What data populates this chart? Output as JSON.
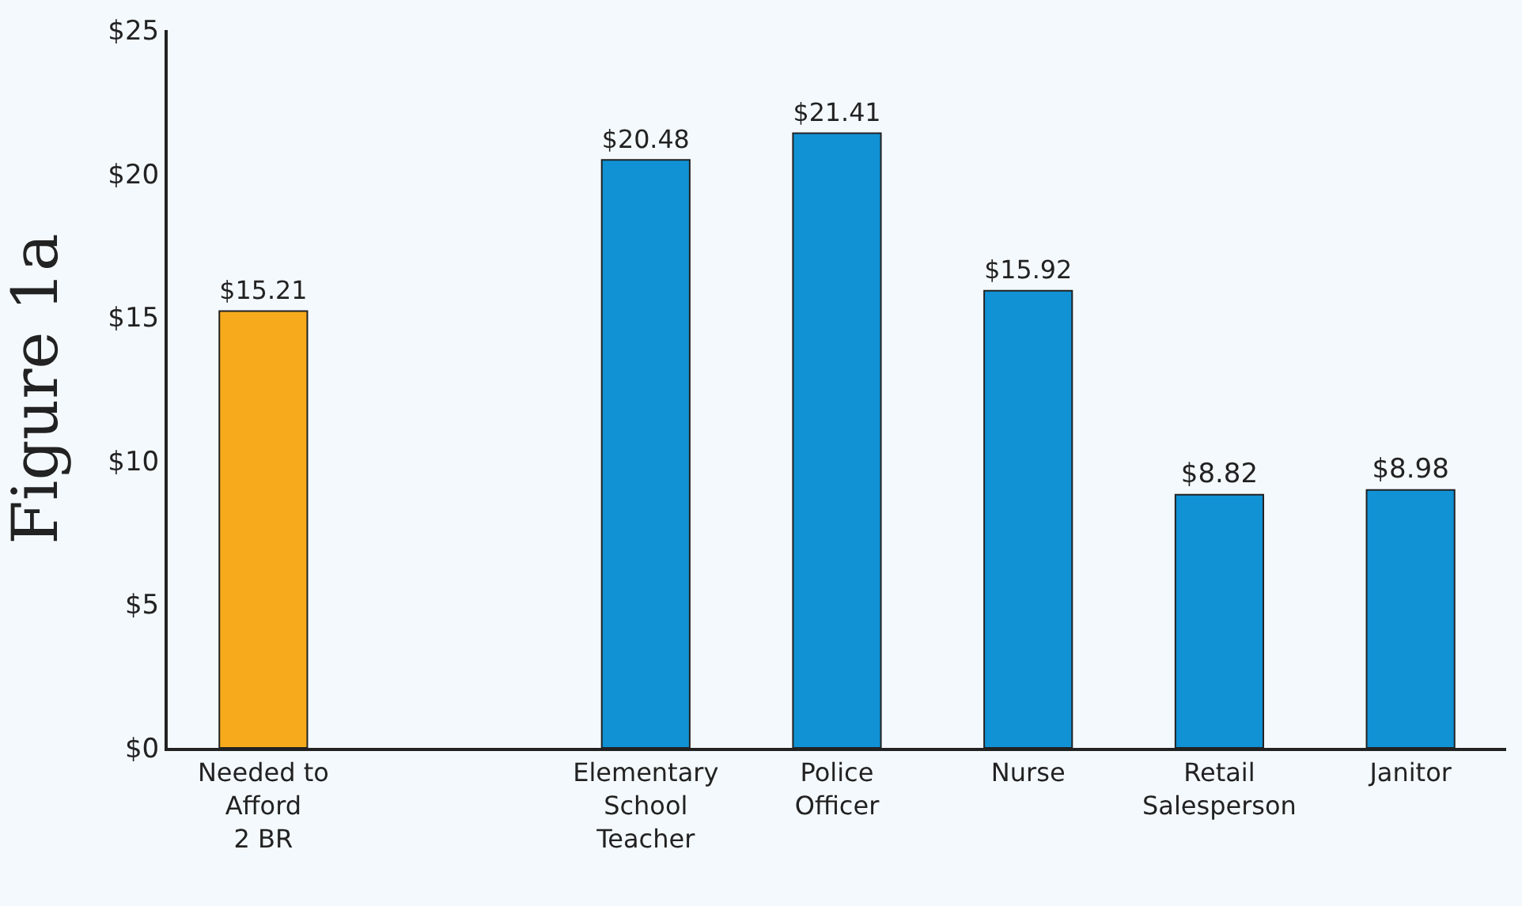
{
  "chart_data": {
    "type": "bar",
    "ylabel": "Figure 1a",
    "categories": [
      "Needed to\nAfford\n2 BR",
      null,
      "Elementary\nSchool\nTeacher",
      "Police\nOfficer",
      "Nurse",
      "Retail\nSalesperson",
      "Janitor"
    ],
    "values": [
      15.21,
      null,
      20.48,
      21.41,
      15.92,
      8.82,
      8.98
    ],
    "colors": [
      "#f7ab1c",
      "#1192d4",
      "#1192d4",
      "#1192d4",
      "#1192d4",
      "#1192d4",
      "#1192d4"
    ],
    "value_labels": [
      "$15.21",
      null,
      "$20.48",
      "$21.41",
      "$15.92",
      "$8.82",
      "$8.98"
    ],
    "ylim": [
      0,
      25
    ],
    "yticks": [
      {
        "value": 0,
        "label": "$0"
      },
      {
        "value": 5,
        "label": "$5"
      },
      {
        "value": 10,
        "label": "$10"
      },
      {
        "value": 15,
        "label": "$15"
      },
      {
        "value": 20,
        "label": "$20"
      },
      {
        "value": 25,
        "label": "$25"
      }
    ],
    "grid": false
  }
}
